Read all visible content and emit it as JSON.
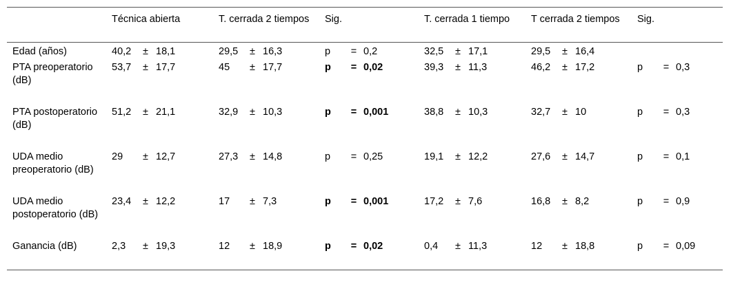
{
  "columns": [
    "",
    "Técnica abierta",
    "T. cerrada 2 tiempos",
    "Sig.",
    "T. cerrada 1 tiempo",
    "T cerrada 2 tiempos",
    "Sig."
  ],
  "rows": [
    {
      "label": "Edad (años)",
      "c1": {
        "mean": "40,2",
        "pm": "±",
        "sd": "18,1"
      },
      "c2": {
        "mean": "29,5",
        "pm": "±",
        "sd": "16,3"
      },
      "sig1": {
        "p": "p",
        "eq": "=",
        "val": "0,2",
        "bold": false
      },
      "c3": {
        "mean": "32,5",
        "pm": "±",
        "sd": "17,1"
      },
      "c4": {
        "mean": "29,5",
        "pm": "±",
        "sd": "16,4"
      },
      "sig2": {
        "p": "",
        "eq": "",
        "val": "",
        "bold": false
      }
    },
    {
      "label": "PTA preoperatorio (dB)",
      "c1": {
        "mean": "53,7",
        "pm": "±",
        "sd": "17,7"
      },
      "c2": {
        "mean": "45",
        "pm": "±",
        "sd": "17,7"
      },
      "sig1": {
        "p": "p",
        "eq": "=",
        "val": "0,02",
        "bold": true
      },
      "c3": {
        "mean": "39,3",
        "pm": "±",
        "sd": "11,3"
      },
      "c4": {
        "mean": "46,2",
        "pm": "±",
        "sd": "17,2"
      },
      "sig2": {
        "p": "p",
        "eq": "=",
        "val": "0,3",
        "bold": false
      }
    },
    {
      "label": "PTA postoperatorio (dB)",
      "c1": {
        "mean": "51,2",
        "pm": "±",
        "sd": "21,1"
      },
      "c2": {
        "mean": "32,9",
        "pm": "±",
        "sd": "10,3"
      },
      "sig1": {
        "p": "p",
        "eq": "=",
        "val": "0,001",
        "bold": true
      },
      "c3": {
        "mean": "38,8",
        "pm": "±",
        "sd": "10,3"
      },
      "c4": {
        "mean": "32,7",
        "pm": "±",
        "sd": "10"
      },
      "sig2": {
        "p": "p",
        "eq": "=",
        "val": "0,3",
        "bold": false
      }
    },
    {
      "label": "UDA medio preoperatorio (dB)",
      "c1": {
        "mean": "29",
        "pm": "±",
        "sd": "12,7"
      },
      "c2": {
        "mean": "27,3",
        "pm": "±",
        "sd": "14,8"
      },
      "sig1": {
        "p": "p",
        "eq": "=",
        "val": "0,25",
        "bold": false
      },
      "c3": {
        "mean": "19,1",
        "pm": "±",
        "sd": "12,2"
      },
      "c4": {
        "mean": "27,6",
        "pm": "±",
        "sd": "14,7"
      },
      "sig2": {
        "p": "p",
        "eq": "=",
        "val": "0,1",
        "bold": false
      }
    },
    {
      "label": "UDA medio postoperatorio (dB)",
      "c1": {
        "mean": "23,4",
        "pm": "±",
        "sd": "12,2"
      },
      "c2": {
        "mean": "17",
        "pm": "±",
        "sd": "7,3"
      },
      "sig1": {
        "p": "p",
        "eq": "=",
        "val": "0,001",
        "bold": true
      },
      "c3": {
        "mean": "17,2",
        "pm": "±",
        "sd": "7,6"
      },
      "c4": {
        "mean": "16,8",
        "pm": "±",
        "sd": "8,2"
      },
      "sig2": {
        "p": "p",
        "eq": "=",
        "val": "0,9",
        "bold": false
      }
    },
    {
      "label": "Ganancia (dB)",
      "c1": {
        "mean": "2,3",
        "pm": "±",
        "sd": "19,3"
      },
      "c2": {
        "mean": "12",
        "pm": "±",
        "sd": "18,9"
      },
      "sig1": {
        "p": "p",
        "eq": "=",
        "val": "0,02",
        "bold": true
      },
      "c3": {
        "mean": "0,4",
        "pm": "±",
        "sd": "11,3"
      },
      "c4": {
        "mean": "12",
        "pm": "±",
        "sd": "18,8"
      },
      "sig2": {
        "p": "p",
        "eq": "=",
        "val": "0,09",
        "bold": false
      }
    }
  ]
}
